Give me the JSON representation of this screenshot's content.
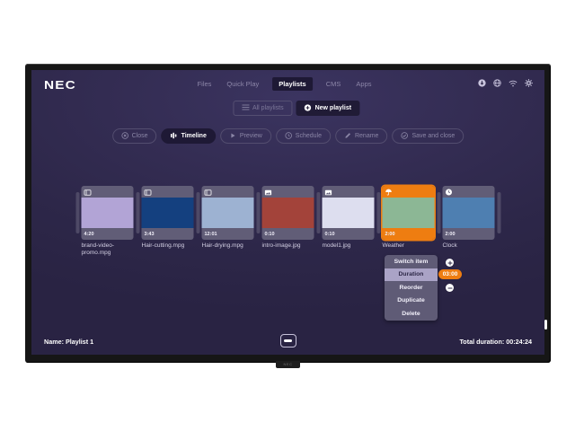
{
  "brand": {
    "logo": "NEC",
    "stand_label": "NEC"
  },
  "nav": {
    "items": [
      {
        "label": "Files",
        "active": false
      },
      {
        "label": "Quick Play",
        "active": false
      },
      {
        "label": "Playlists",
        "active": true
      },
      {
        "label": "CMS",
        "active": false
      },
      {
        "label": "Apps",
        "active": false
      }
    ]
  },
  "status_icons": [
    {
      "name": "download-icon"
    },
    {
      "name": "globe-icon"
    },
    {
      "name": "wifi-icon"
    },
    {
      "name": "gear-icon"
    }
  ],
  "playlist_bar": {
    "all_playlists": "All playlists",
    "new_playlist": "New playlist"
  },
  "toolbar": {
    "items": [
      {
        "label": "Close",
        "icon": "close-circle-icon",
        "active": false
      },
      {
        "label": "Timeline",
        "icon": "sliders-icon",
        "active": true
      },
      {
        "label": "Preview",
        "icon": "play-icon",
        "active": false
      },
      {
        "label": "Schedule",
        "icon": "clock-icon",
        "active": false
      },
      {
        "label": "Rename",
        "icon": "pencil-icon",
        "active": false
      },
      {
        "label": "Save and close",
        "icon": "check-circle-icon",
        "active": false
      }
    ]
  },
  "timeline": {
    "items": [
      {
        "name": "brand-video-promo.mpg",
        "duration": "4:20",
        "type": "video",
        "icon": "film-icon",
        "color": "#b2a4d6",
        "selected": false
      },
      {
        "name": "Hair-cutting.mpg",
        "duration": "3:43",
        "type": "video",
        "icon": "film-icon",
        "color": "#14407f",
        "selected": false
      },
      {
        "name": "Hair-drying.mpg",
        "duration": "12:01",
        "type": "video",
        "icon": "film-icon",
        "color": "#9db2d2",
        "selected": false
      },
      {
        "name": "intro-image.jpg",
        "duration": "0:10",
        "type": "image",
        "icon": "image-icon",
        "color": "#a3433a",
        "selected": false
      },
      {
        "name": "model1.jpg",
        "duration": "0:10",
        "type": "image",
        "icon": "image-icon",
        "color": "#dddeef",
        "selected": false
      },
      {
        "name": "Weather",
        "duration": "2:00",
        "type": "widget",
        "icon": "umbrella-icon",
        "color": "#8cb795",
        "selected": true
      },
      {
        "name": "Clock",
        "duration": "2:00",
        "type": "widget",
        "icon": "clock-solid-icon",
        "color": "#4e7fb1",
        "selected": false
      }
    ]
  },
  "context_menu": {
    "items": [
      "Switch item",
      "Duration",
      "Reorder",
      "Duplicate",
      "Delete"
    ],
    "highlighted_index": 1,
    "duration_value": "03:00",
    "increase_icon": "plus-circle-icon",
    "decrease_icon": "minus-circle-icon"
  },
  "footer": {
    "name": "Name: Playlist 1",
    "total_duration": "Total duration: 00:24:24"
  },
  "colors": {
    "accent": "#ee7d11",
    "selection": "#ee7d11"
  }
}
